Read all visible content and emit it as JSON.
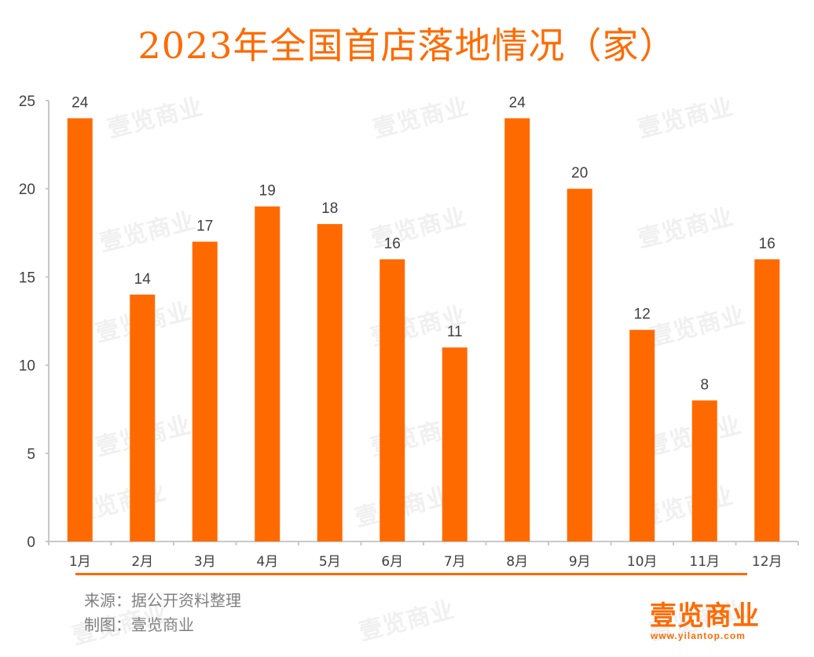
{
  "chart_data": {
    "type": "bar",
    "title": "2023年全国首店落地情况（家）",
    "categories": [
      "1月",
      "2月",
      "3月",
      "4月",
      "5月",
      "6月",
      "7月",
      "8月",
      "9月",
      "10月",
      "11月",
      "12月"
    ],
    "values": [
      24,
      14,
      17,
      19,
      18,
      16,
      11,
      24,
      20,
      12,
      8,
      16
    ],
    "data_labels": [
      "24",
      "14",
      "17",
      "19",
      "18",
      "16",
      "11",
      "24",
      "20",
      "12",
      "8",
      "16"
    ],
    "xlabel": "",
    "ylabel": "",
    "ylim": [
      0,
      25
    ],
    "yticks": [
      0,
      5,
      10,
      15,
      20,
      25
    ],
    "ytick_labels": [
      "0",
      "5",
      "10",
      "15",
      "20",
      "25"
    ],
    "grid": false,
    "legend": "none",
    "bar_color": "#ff6a00"
  },
  "footer": {
    "source": "来源：据公开资料整理",
    "maker": "制图：壹览商业"
  },
  "brand": {
    "name": "壹览商业",
    "url": "www.yilantop.com",
    "color": "#ff6a00"
  },
  "watermark_text": "壹览商业"
}
